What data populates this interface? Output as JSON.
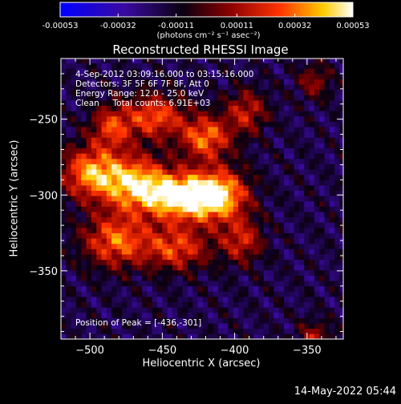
{
  "colorbar": {
    "tick_labels": [
      "-0.00053",
      "-0.00032",
      "-0.00011",
      "0.00011",
      "0.00032",
      "0.00053"
    ],
    "unit": "(photons cm⁻² s⁻¹ asec⁻²)",
    "colors": [
      "#0000ff",
      "#3a0aa0",
      "#000000",
      "#8a0000",
      "#ff3300",
      "#ffcc00",
      "#ffffff"
    ]
  },
  "info": {
    "time_range": "4-Sep-2012 03:09:16.000 to 03:15:16.000",
    "detectors": "Detectors: 3F 5F 6F 7F 8F, Att 0",
    "energy": "Energy Range: 12.0 - 25.0 keV",
    "clean": "Clean     Total counts: 6.91E+03",
    "peak": "Position of Peak = [-436,-301]"
  },
  "datestamp": "14-May-2022 05:44",
  "chart_data": {
    "type": "heatmap",
    "title": "Reconstructed RHESSI Image",
    "xlabel": "Heliocentric X (arcsec)",
    "ylabel": "Heliocentric Y (arcsec)",
    "xlim": [
      -520,
      -325
    ],
    "ylim": [
      -395,
      -210
    ],
    "x_ticks": [
      -500,
      -450,
      -400,
      -350
    ],
    "x_tick_labels": [
      "−500",
      "−450",
      "−400",
      "−350"
    ],
    "y_ticks": [
      -250,
      -300,
      -350
    ],
    "y_tick_labels": [
      "−250",
      "−300",
      "−350"
    ],
    "zlim": [
      -0.00053,
      0.00053
    ],
    "peak_position": [
      -436,
      -301
    ],
    "source_blobs": [
      {
        "x": -436,
        "y": -301,
        "peak": 0.00053,
        "sx": 18,
        "sy": 11
      },
      {
        "x": -470,
        "y": -292,
        "peak": 0.0004,
        "sx": 16,
        "sy": 13
      },
      {
        "x": -500,
        "y": -285,
        "peak": 0.00034,
        "sx": 14,
        "sy": 12
      },
      {
        "x": -410,
        "y": -300,
        "peak": 0.00036,
        "sx": 14,
        "sy": 12
      },
      {
        "x": -420,
        "y": -262,
        "peak": 0.00032,
        "sx": 12,
        "sy": 10
      },
      {
        "x": -455,
        "y": -248,
        "peak": 0.00028,
        "sx": 14,
        "sy": 10
      },
      {
        "x": -485,
        "y": -255,
        "peak": 0.00022,
        "sx": 10,
        "sy": 10
      },
      {
        "x": -482,
        "y": -330,
        "peak": 0.0003,
        "sx": 16,
        "sy": 12
      },
      {
        "x": -440,
        "y": -335,
        "peak": 0.00024,
        "sx": 16,
        "sy": 10
      },
      {
        "x": -395,
        "y": -330,
        "peak": 0.00018,
        "sx": 10,
        "sy": 10
      },
      {
        "x": -392,
        "y": -245,
        "peak": 0.00016,
        "sx": 10,
        "sy": 10
      },
      {
        "x": -345,
        "y": -395,
        "peak": 0.00012,
        "sx": 8,
        "sy": 8
      },
      {
        "x": -345,
        "y": -225,
        "peak": 8e-05,
        "sx": 8,
        "sy": 8
      }
    ],
    "grid": false
  }
}
